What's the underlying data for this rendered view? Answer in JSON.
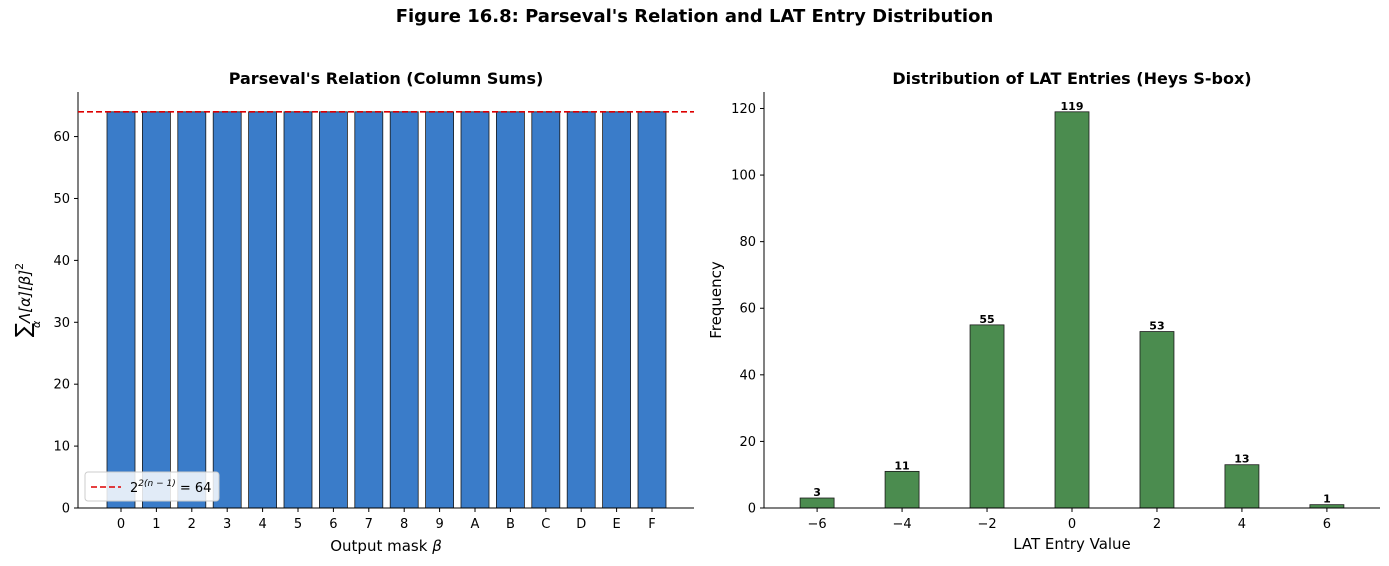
{
  "figure_title": "Figure 16.8: Parseval's Relation and LAT Entry Distribution",
  "chart_data": [
    {
      "type": "bar",
      "title": "Parseval's Relation (Column Sums)",
      "xlabel_text": "Output mask ",
      "xlabel_var": "β",
      "ylabel_sum": "∑",
      "ylabel_sub": "α",
      "ylabel_expr": "Λ[α][β]",
      "ylabel_sup": "2",
      "categories": [
        "0",
        "1",
        "2",
        "3",
        "4",
        "5",
        "6",
        "7",
        "8",
        "9",
        "A",
        "B",
        "C",
        "D",
        "E",
        "F"
      ],
      "values": [
        64,
        64,
        64,
        64,
        64,
        64,
        64,
        64,
        64,
        64,
        64,
        64,
        64,
        64,
        64,
        64
      ],
      "ylim": [
        0,
        67.2
      ],
      "yticks": [
        0,
        10,
        20,
        30,
        40,
        50,
        60
      ],
      "reference_line": {
        "value": 64,
        "label_base": "2",
        "label_exp": "2(n − 1)",
        "label_rest": " = 64",
        "color": "#dd0000"
      },
      "bar_color": "#3a7cc9",
      "legend_position": "lower-left"
    },
    {
      "type": "bar",
      "title": "Distribution of LAT Entries (Heys S-box)",
      "xlabel": "LAT Entry Value",
      "ylabel": "Frequency",
      "x": [
        -6,
        -4,
        -2,
        0,
        2,
        4,
        6
      ],
      "x_labels": [
        "−6",
        "−4",
        "−2",
        "0",
        "2",
        "4",
        "6"
      ],
      "values": [
        3,
        11,
        55,
        119,
        53,
        13,
        1
      ],
      "value_labels": [
        "3",
        "11",
        "55",
        "119",
        "53",
        "13",
        "1"
      ],
      "xlim": [
        -7.25,
        7.25
      ],
      "ylim": [
        0,
        124.95
      ],
      "yticks": [
        0,
        20,
        40,
        60,
        80,
        100,
        120
      ],
      "bar_color": "#4b8c4f"
    }
  ]
}
